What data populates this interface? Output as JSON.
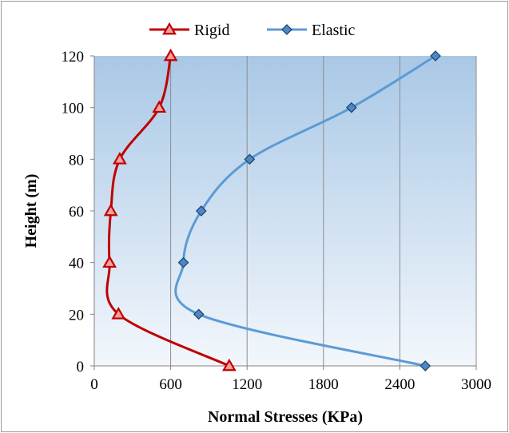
{
  "chart_data": {
    "type": "line",
    "xlabel": "Normal Stresses (KPa)",
    "ylabel": "Height (m)",
    "xlim": [
      0,
      3000
    ],
    "ylim": [
      0,
      120
    ],
    "xticks": [
      "0",
      "600",
      "1200",
      "1800",
      "2400",
      "3000"
    ],
    "yticks": [
      "0",
      "20",
      "40",
      "60",
      "80",
      "100",
      "120"
    ],
    "grid": "vertical",
    "legend": "top",
    "series": [
      {
        "name": "Rigid",
        "color": "#c00000",
        "marker": "triangle",
        "x": [
          1060,
          190,
          120,
          130,
          200,
          510,
          600
        ],
        "y": [
          0,
          20,
          40,
          60,
          80,
          100,
          120
        ]
      },
      {
        "name": "Elastic",
        "color": "#5b9bd5",
        "marker": "diamond",
        "x": [
          2600,
          820,
          700,
          840,
          1220,
          2020,
          2680
        ],
        "y": [
          0,
          20,
          40,
          60,
          80,
          100,
          120
        ]
      }
    ]
  }
}
